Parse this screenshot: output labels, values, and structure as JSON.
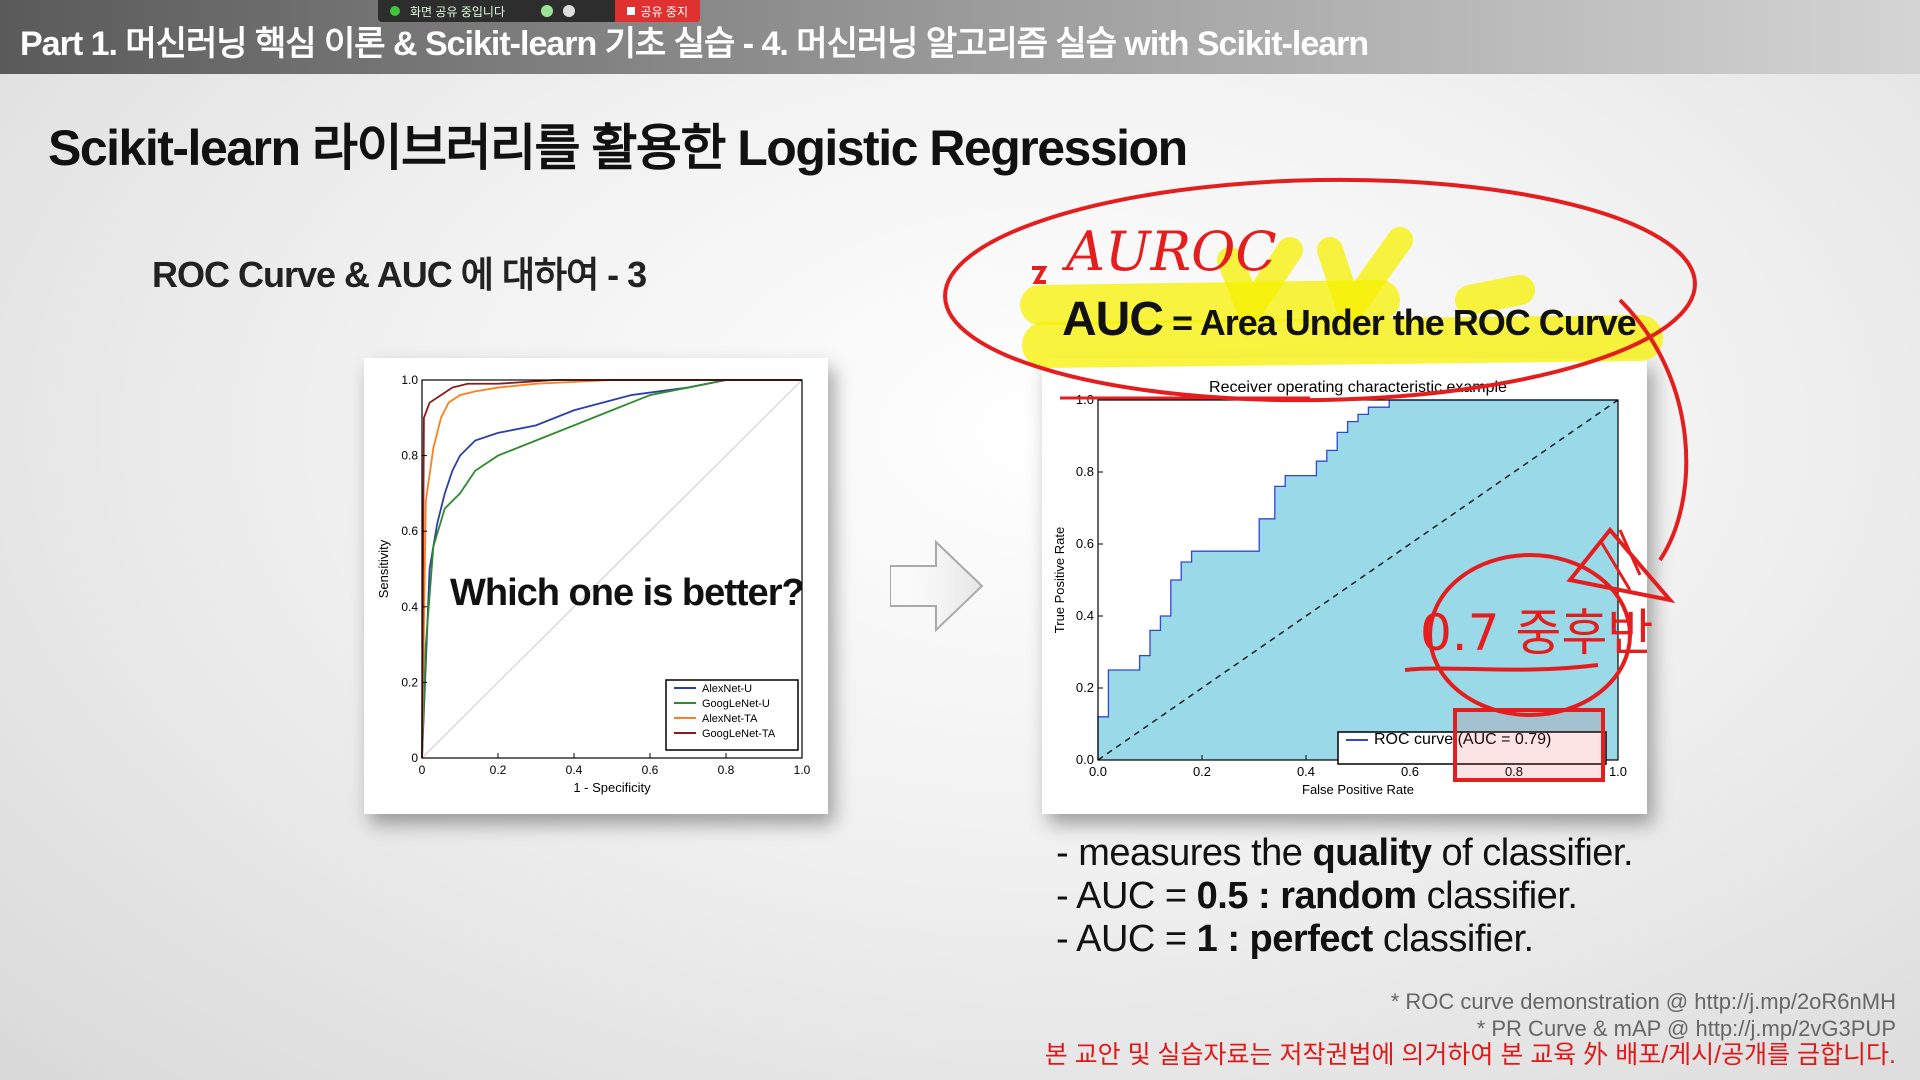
{
  "header": {
    "title": "Part 1. 머신러닝 핵심 이론 & Scikit-learn 기초 실습 - 4. 머신러닝 알고리즘 실습 with Scikit-learn"
  },
  "share_bar": {
    "status": "화면 공유 중입니다",
    "stop_label": "공유 중지"
  },
  "slide": {
    "title": "Scikit-learn 라이브러리를 활용한 Logistic Regression",
    "section": "ROC Curve & AUC 에 대하여 - 3",
    "auc_big": "AUC",
    "auc_rest": " = Area Under the ROC Curve",
    "question": "Which one is better?",
    "bullets": [
      {
        "pre": "- measures the ",
        "bold": "quality",
        "post": " of classifier."
      },
      {
        "pre": "- AUC = ",
        "bold": "0.5 : random",
        "post": " classifier."
      },
      {
        "pre": "- AUC = ",
        "bold": "1 : perfect",
        "post": " classifier."
      }
    ],
    "refs": [
      "* ROC curve demonstration @ http://j.mp/2oR6nMH",
      "* PR Curve & mAP @ http://j.mp/2vG3PUP"
    ],
    "copyright": "본 교안 및 실습자료는 저작권법에 의거하여 본 교육 外 배포/게시/공개를 금합니다."
  },
  "annotations": {
    "auroc": "AUROC",
    "approx": "0.7 중후반"
  },
  "chart_data": [
    {
      "type": "line",
      "title": "",
      "xlabel": "1 - Specificity",
      "ylabel": "Sensitivity",
      "xlim": [
        0,
        1
      ],
      "ylim": [
        0,
        1
      ],
      "xticks": [
        "0",
        "0.2",
        "0.4",
        "0.6",
        "0.8",
        "1.0"
      ],
      "yticks": [
        "0",
        "0.2",
        "0.4",
        "0.6",
        "0.8",
        "1.0"
      ],
      "legend": "bottom-right",
      "series": [
        {
          "name": "AlexNet-U",
          "color": "#2b3fa8",
          "x": [
            0,
            0.02,
            0.04,
            0.06,
            0.08,
            0.1,
            0.14,
            0.2,
            0.3,
            0.4,
            0.55,
            0.7,
            0.8,
            1.0
          ],
          "y": [
            0,
            0.5,
            0.62,
            0.7,
            0.76,
            0.8,
            0.84,
            0.86,
            0.88,
            0.92,
            0.96,
            0.98,
            1.0,
            1.0
          ]
        },
        {
          "name": "GoogLeNet-U",
          "color": "#2e8b2e",
          "x": [
            0,
            0.01,
            0.03,
            0.06,
            0.1,
            0.14,
            0.2,
            0.3,
            0.4,
            0.5,
            0.6,
            0.7,
            0.8,
            1.0
          ],
          "y": [
            0,
            0.3,
            0.56,
            0.66,
            0.7,
            0.76,
            0.8,
            0.84,
            0.88,
            0.92,
            0.96,
            0.98,
            1.0,
            1.0
          ]
        },
        {
          "name": "AlexNet-TA",
          "color": "#ff7f1e",
          "x": [
            0,
            0.01,
            0.03,
            0.05,
            0.07,
            0.1,
            0.14,
            0.2,
            0.3,
            0.5,
            1.0
          ],
          "y": [
            0,
            0.68,
            0.82,
            0.9,
            0.94,
            0.96,
            0.97,
            0.98,
            0.99,
            1.0,
            1.0
          ]
        },
        {
          "name": "GoogLeNet-TA",
          "color": "#8b1a1a",
          "x": [
            0,
            0.005,
            0.02,
            0.05,
            0.08,
            0.12,
            0.2,
            0.35,
            0.5,
            1.0
          ],
          "y": [
            0,
            0.9,
            0.94,
            0.96,
            0.98,
            0.99,
            0.99,
            1.0,
            1.0,
            1.0
          ]
        }
      ]
    },
    {
      "type": "area",
      "title": "Receiver operating characteristic example",
      "xlabel": "False Positive Rate",
      "ylabel": "True Positive Rate",
      "xlim": [
        0,
        1
      ],
      "ylim": [
        0,
        1
      ],
      "xticks": [
        "0.0",
        "0.2",
        "0.4",
        "0.6",
        "0.8",
        "1.0"
      ],
      "yticks": [
        "0.0",
        "0.2",
        "0.4",
        "0.6",
        "0.8",
        "1.0"
      ],
      "legend": "lower-right",
      "fill_color": "#9ad9e8",
      "line_color": "#3344dd",
      "series": [
        {
          "name": "ROC curve (AUC = 0.79)",
          "x": [
            0,
            0,
            0.02,
            0.02,
            0.08,
            0.08,
            0.1,
            0.1,
            0.12,
            0.12,
            0.14,
            0.14,
            0.16,
            0.16,
            0.18,
            0.18,
            0.31,
            0.31,
            0.34,
            0.34,
            0.36,
            0.36,
            0.42,
            0.42,
            0.44,
            0.44,
            0.46,
            0.46,
            0.48,
            0.48,
            0.5,
            0.5,
            0.52,
            0.52,
            0.56,
            0.56,
            0.6,
            0.6,
            1.0
          ],
          "y": [
            0,
            0.12,
            0.12,
            0.25,
            0.25,
            0.29,
            0.29,
            0.36,
            0.36,
            0.4,
            0.4,
            0.5,
            0.5,
            0.55,
            0.55,
            0.58,
            0.58,
            0.67,
            0.67,
            0.76,
            0.76,
            0.79,
            0.79,
            0.83,
            0.83,
            0.86,
            0.86,
            0.91,
            0.91,
            0.94,
            0.94,
            0.96,
            0.96,
            0.98,
            0.98,
            1.0,
            1.0,
            1.0,
            1.0
          ]
        }
      ]
    }
  ]
}
